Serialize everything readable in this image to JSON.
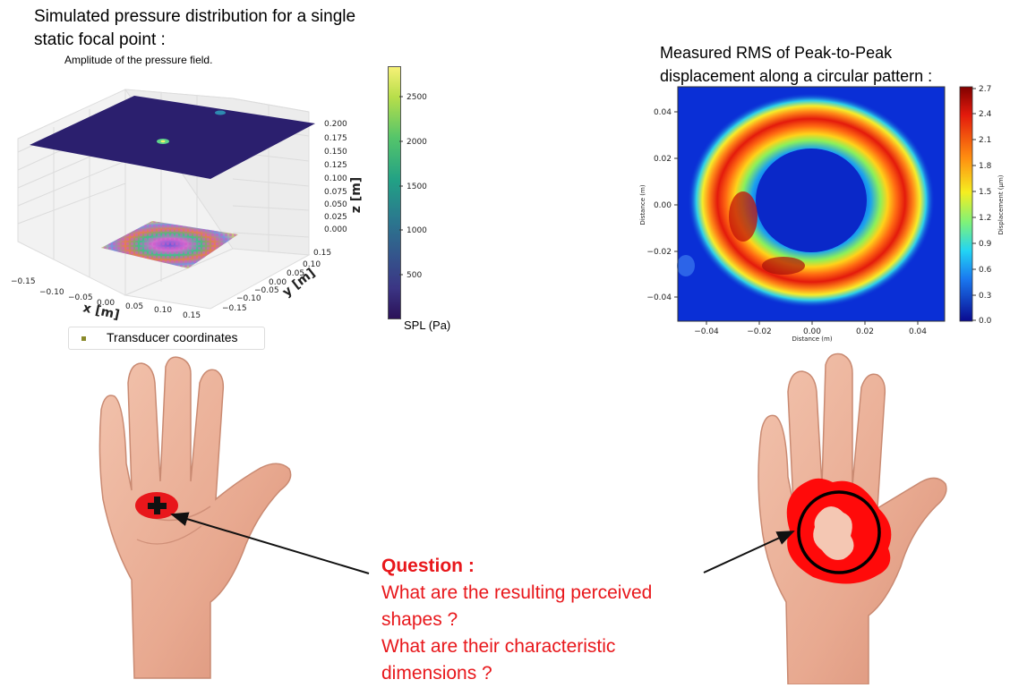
{
  "left_panel": {
    "heading_line1": "Simulated pressure distribution for a single",
    "heading_line2": "static focal point :",
    "plot_title": "Amplitude of the pressure field.",
    "x_axis_label": "x [m]",
    "y_axis_label": "y [m]",
    "z_axis_label": "z [m]",
    "x_ticks": [
      "−0.15",
      "−0.10",
      "−0.05",
      "0.00",
      "0.05",
      "0.10",
      "0.15"
    ],
    "y_ticks": [
      "0.15",
      "0.10",
      "0.05",
      "0.00",
      "−0.05",
      "−0.10",
      "−0.15"
    ],
    "z_ticks": [
      "0.200",
      "0.175",
      "0.150",
      "0.125",
      "0.100",
      "0.075",
      "0.050",
      "0.025",
      "0.000"
    ],
    "colorbar_ticks": [
      "2500",
      "2000",
      "1500",
      "1000",
      "500"
    ],
    "colorbar_label": "SPL (Pa)",
    "legend_label": "Transducer coordinates",
    "colors": {
      "plane": "#2b1f6e",
      "legend_marker": "#8a8a2a"
    }
  },
  "right_panel": {
    "heading_line1": "Measured RMS of Peak-to-Peak",
    "heading_line2": "displacement along a circular pattern :",
    "x_axis_label": "Distance (m)",
    "y_axis_label": "Distance (m)",
    "x_ticks": [
      "−0.04",
      "−0.02",
      "0.00",
      "0.02",
      "0.04"
    ],
    "y_ticks": [
      "0.04",
      "0.02",
      "0.00",
      "−0.02",
      "−0.04"
    ],
    "colorbar_ticks": [
      "2.7",
      "2.4",
      "2.1",
      "1.8",
      "1.5",
      "1.2",
      "0.9",
      "0.6",
      "0.3",
      "0.0"
    ],
    "colorbar_label": "Displacement (µm)",
    "colors": {
      "background": "#0a2fd6",
      "ring_peak": "#e31a0c"
    }
  },
  "question": {
    "heading": "Question :",
    "line1": "What are the resulting perceived",
    "line2": "shapes ?",
    "line3": "What are their characteristic",
    "line4": "dimensions ?"
  },
  "icons": {
    "left_hand": "hand-icon",
    "right_hand": "hand-icon",
    "focal_point": "plus-icon"
  }
}
